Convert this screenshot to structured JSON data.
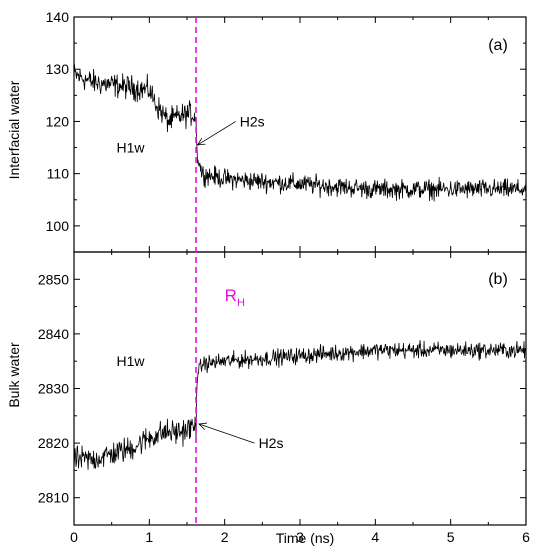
{
  "chart_data": [
    {
      "type": "line",
      "panel_label": "(a)",
      "xlabel": "",
      "ylabel": "Interfacial water",
      "xlim": [
        0,
        6
      ],
      "ylim": [
        95,
        140
      ],
      "yticks": [
        "100",
        "110",
        "120",
        "130",
        "140"
      ],
      "line_color": "#000000",
      "series": [
        {
          "x": [
            0.0,
            0.25,
            0.5,
            0.75,
            1.0,
            1.1,
            1.25,
            1.4,
            1.55,
            1.62,
            1.63,
            1.7,
            2.0,
            2.5,
            3.0,
            3.5,
            4.0,
            4.5,
            5.0,
            5.5,
            6.0
          ],
          "y": [
            129,
            127.5,
            127,
            126.5,
            126,
            123,
            120,
            121,
            121.5,
            121,
            114,
            110,
            109,
            108.5,
            108,
            107.5,
            107,
            107,
            107,
            107,
            107
          ],
          "noise": [
            2.0,
            2.0,
            2.0,
            2.0,
            2.0,
            2.0,
            2.0,
            2.0,
            2.0,
            2.0,
            1.5,
            1.6,
            1.6,
            1.6,
            1.6,
            1.6,
            1.6,
            1.6,
            1.6,
            1.6,
            1.6
          ]
        }
      ],
      "annotations": [
        {
          "text": "H1w",
          "x": 0.75,
          "y": 115
        },
        {
          "text": "H2s",
          "x": 2.2,
          "y": 120,
          "arrow_to": [
            1.64,
            115.5
          ]
        }
      ]
    },
    {
      "type": "line",
      "panel_label": "(b)",
      "xlabel": "Time (ns)",
      "ylabel": "Bulk water",
      "xlim": [
        0,
        6
      ],
      "ylim": [
        2805,
        2855
      ],
      "yticks": [
        "2810",
        "2820",
        "2830",
        "2840",
        "2850"
      ],
      "xticks": [
        "0",
        "1",
        "2",
        "3",
        "4",
        "5",
        "6"
      ],
      "line_color": "#000000",
      "series": [
        {
          "x": [
            0.0,
            0.25,
            0.5,
            0.75,
            1.0,
            1.2,
            1.4,
            1.6,
            1.62,
            1.63,
            1.7,
            2.0,
            2.5,
            3.0,
            3.5,
            4.0,
            4.5,
            5.0,
            5.5,
            6.0
          ],
          "y": [
            2817,
            2817,
            2818,
            2819,
            2821,
            2822,
            2822,
            2823,
            2823,
            2832,
            2834.5,
            2835,
            2835.5,
            2836,
            2836.5,
            2837,
            2837,
            2837,
            2837,
            2837
          ],
          "noise": [
            2.0,
            2.0,
            2.0,
            2.0,
            2.0,
            2.0,
            2.0,
            2.0,
            2.0,
            1.3,
            1.3,
            1.3,
            1.3,
            1.3,
            1.3,
            1.3,
            1.3,
            1.3,
            1.3,
            1.3
          ]
        }
      ],
      "annotations": [
        {
          "text": "H1w",
          "x": 0.75,
          "y": 2835
        },
        {
          "text": "H2s",
          "x": 2.45,
          "y": 2820,
          "arrow_to": [
            1.66,
            2823.5
          ]
        }
      ]
    }
  ],
  "marker_line": {
    "x": 1.62,
    "color": "#e010e0",
    "style": "dashed",
    "label_main": "R",
    "label_sub": "H",
    "label_x": 2.0,
    "label_y": 2846
  }
}
